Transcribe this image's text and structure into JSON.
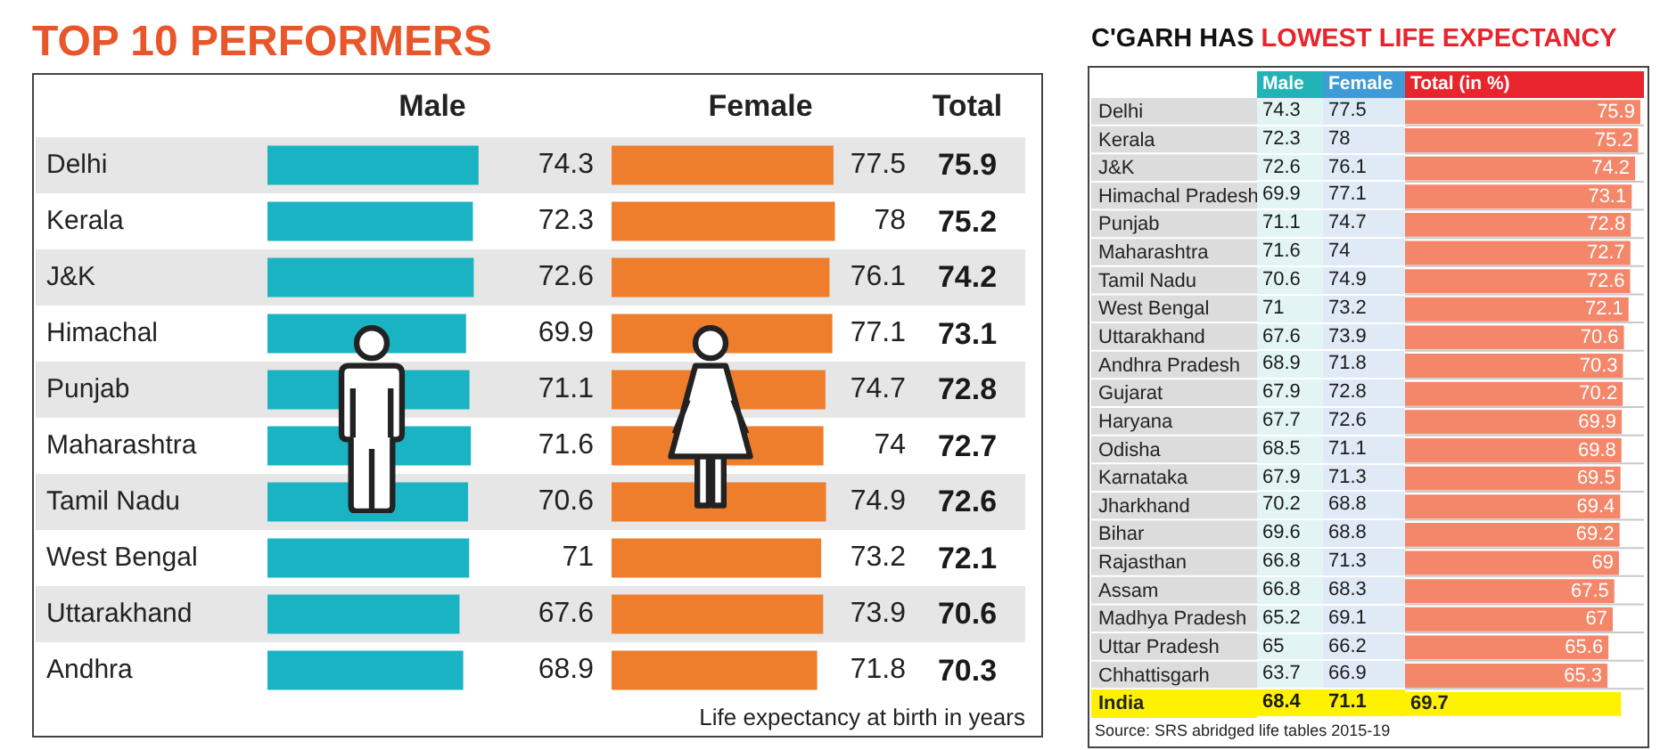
{
  "chart_data": [
    {
      "type": "bar",
      "orientation": "horizontal",
      "title": "TOP 10 PERFORMERS",
      "data_labels": true,
      "tick_labels": "y",
      "categories": [
        "Delhi",
        "Kerala",
        "J&K",
        "Himachal",
        "Punjab",
        "Maharashtra",
        "Tamil Nadu",
        "West Bengal",
        "Uttarakhand",
        "Andhra"
      ],
      "series": [
        {
          "name": "Male",
          "color": "#1ab3c3",
          "values": [
            74.3,
            72.3,
            72.6,
            69.9,
            71.1,
            71.6,
            70.6,
            71,
            67.6,
            68.9
          ]
        }
      ]
    },
    {
      "type": "bar",
      "orientation": "horizontal",
      "data_labels": true,
      "tick_labels": false,
      "categories": [
        null,
        null,
        null,
        null,
        null,
        null,
        null,
        null,
        null,
        null
      ],
      "series": [
        {
          "name": "Female",
          "color": "#ee7d2c",
          "values": [
            77.5,
            78,
            76.1,
            77.1,
            74.7,
            74,
            74.9,
            73.2,
            73.9,
            71.8
          ]
        }
      ],
      "annotations": [
        "Life expectancy at birth in years"
      ]
    },
    {
      "type": "other",
      "title": "Total",
      "annotations": [
        "75.9",
        "75.2",
        "74.2",
        "73.1",
        "72.8",
        "72.7",
        "72.6",
        "72.1",
        "70.6",
        "70.3"
      ]
    },
    {
      "type": "bar",
      "orientation": "horizontal",
      "title": "C'GARH HAS LOWEST LIFE EXPECTANCY",
      "data_labels": true,
      "tick_labels": "y",
      "categories": [
        "Delhi",
        "Kerala",
        "J&K",
        "Himachal Pradesh",
        "Punjab",
        "Maharashtra",
        "Tamil Nadu",
        "West Bengal",
        "Uttarakhand",
        "Andhra Pradesh",
        "Gujarat",
        "Haryana",
        "Odisha",
        "Karnataka",
        "Jharkhand",
        "Bihar",
        "Rajasthan",
        "Assam",
        "Madhya Pradesh",
        "Uttar Pradesh",
        "Chhattisgarh",
        "India"
      ],
      "series": [
        {
          "name": "Total (in %)",
          "colors": [
            "#f4866a",
            "#f4866a",
            "#f4866a",
            "#f4866a",
            "#f4866a",
            "#f4866a",
            "#f4866a",
            "#f4866a",
            "#f4866a",
            "#f4866a",
            "#f4866a",
            "#f4866a",
            "#f4866a",
            "#f4866a",
            "#f4866a",
            "#f4866a",
            "#f4866a",
            "#f4866a",
            "#f4866a",
            "#f4866a",
            "#f4866a",
            "#fff200"
          ],
          "values": [
            75.9,
            75.2,
            74.2,
            73.1,
            72.8,
            72.7,
            72.6,
            72.1,
            70.6,
            70.3,
            70.2,
            69.9,
            69.8,
            69.5,
            69.4,
            69.2,
            69,
            67.5,
            67,
            65.6,
            65.3,
            69.7
          ]
        }
      ],
      "annotations": [
        "Source: SRS abridged life tables 2015-19"
      ]
    },
    {
      "type": "other",
      "title": "Male",
      "annotations": [
        "74.3",
        "72.3",
        "72.6",
        "69.9",
        "71.1",
        "71.6",
        "70.6",
        "71",
        "67.6",
        "68.9",
        "67.9",
        "67.7",
        "68.5",
        "67.9",
        "70.2",
        "69.6",
        "66.8",
        "66.8",
        "65.2",
        "65",
        "63.7",
        "68.4"
      ]
    },
    {
      "type": "other",
      "title": "Female",
      "annotations": [
        "77.5",
        "78",
        "76.1",
        "77.1",
        "74.7",
        "74",
        "74.9",
        "73.2",
        "73.9",
        "71.8",
        "72.8",
        "72.6",
        "71.1",
        "71.3",
        "68.8",
        "68.8",
        "71.3",
        "68.3",
        "69.1",
        "66.2",
        "66.9",
        "71.1"
      ]
    }
  ]
}
